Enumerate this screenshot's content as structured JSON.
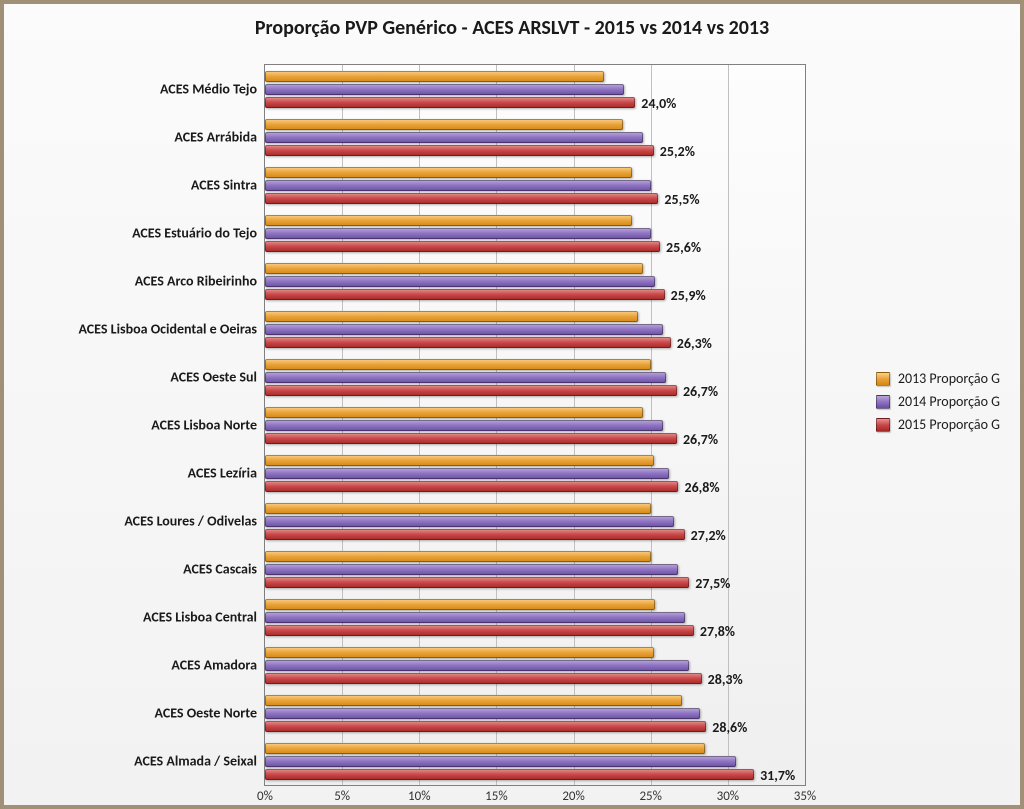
{
  "chart": {
    "type": "bar-horizontal-grouped",
    "title": "Proporção PVP Genérico - ACES ARSLVT - 2015 vs 2014 vs 2013",
    "title_fontsize": 20,
    "title_weight": "bold",
    "background_gradient": [
      "#fbfbfb",
      "#f2f2f2"
    ],
    "plot_background_gradient": [
      "#fdfdfd",
      "#efefef"
    ],
    "border_color": "#a09078",
    "grid_color": "#c0c0c0",
    "axis_color": "#808080",
    "label_fontsize": 14,
    "tick_fontsize": 13,
    "datalabel_fontsize": 14,
    "xaxis": {
      "min": 0,
      "max": 35,
      "ticks": [
        0,
        5,
        10,
        15,
        20,
        25,
        30,
        35
      ],
      "tick_labels": [
        "0%",
        "5%",
        "10%",
        "15%",
        "20%",
        "25%",
        "30%",
        "35%"
      ]
    },
    "series": [
      {
        "key": "y2013",
        "label": "2013 Proporção G",
        "gradient": [
          "#fbd185",
          "#e8a23a",
          "#d68910"
        ]
      },
      {
        "key": "y2014",
        "label": "2014 Proporção G",
        "gradient": [
          "#b9a8d8",
          "#8e72c3",
          "#6b4fa0"
        ]
      },
      {
        "key": "y2015",
        "label": "2015 Proporção G",
        "gradient": [
          "#e89090",
          "#c84848",
          "#a82828"
        ]
      }
    ],
    "categories": [
      {
        "label": "ACES Médio Tejo",
        "y2013": 22.0,
        "y2014": 23.3,
        "y2015": 24.0,
        "display_label": "24,0%"
      },
      {
        "label": "ACES Arrábida",
        "y2013": 23.2,
        "y2014": 24.5,
        "y2015": 25.2,
        "display_label": "25,2%"
      },
      {
        "label": "ACES Sintra",
        "y2013": 23.8,
        "y2014": 25.0,
        "y2015": 25.5,
        "display_label": "25,5%"
      },
      {
        "label": "ACES Estuário do Tejo",
        "y2013": 23.8,
        "y2014": 25.0,
        "y2015": 25.6,
        "display_label": "25,6%"
      },
      {
        "label": "ACES Arco Ribeirinho",
        "y2013": 24.5,
        "y2014": 25.3,
        "y2015": 25.9,
        "display_label": "25,9%"
      },
      {
        "label": "ACES Lisboa Ocidental e Oeiras",
        "y2013": 24.2,
        "y2014": 25.8,
        "y2015": 26.3,
        "display_label": "26,3%"
      },
      {
        "label": "ACES Oeste Sul",
        "y2013": 25.0,
        "y2014": 26.0,
        "y2015": 26.7,
        "display_label": "26,7%"
      },
      {
        "label": "ACES Lisboa Norte",
        "y2013": 24.5,
        "y2014": 25.8,
        "y2015": 26.7,
        "display_label": "26,7%"
      },
      {
        "label": "ACES Lezíria",
        "y2013": 25.2,
        "y2014": 26.2,
        "y2015": 26.8,
        "display_label": "26,8%"
      },
      {
        "label": "ACES Loures / Odivelas",
        "y2013": 25.0,
        "y2014": 26.5,
        "y2015": 27.2,
        "display_label": "27,2%"
      },
      {
        "label": "ACES Cascais",
        "y2013": 25.0,
        "y2014": 26.8,
        "y2015": 27.5,
        "display_label": "27,5%"
      },
      {
        "label": "ACES Lisboa Central",
        "y2013": 25.3,
        "y2014": 27.2,
        "y2015": 27.8,
        "display_label": "27,8%"
      },
      {
        "label": "ACES Amadora",
        "y2013": 25.2,
        "y2014": 27.5,
        "y2015": 28.3,
        "display_label": "28,3%"
      },
      {
        "label": "ACES Oeste Norte",
        "y2013": 27.0,
        "y2014": 28.2,
        "y2015": 28.6,
        "display_label": "28,6%"
      },
      {
        "label": "ACES Almada / Seixal",
        "y2013": 28.5,
        "y2014": 30.5,
        "y2015": 31.7,
        "display_label": "31,7%"
      }
    ]
  }
}
